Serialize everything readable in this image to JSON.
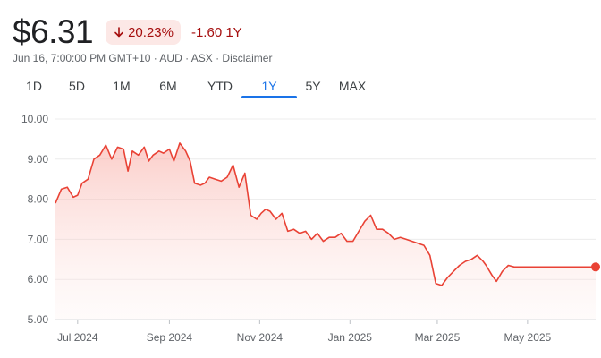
{
  "quote": {
    "price": "$6.31",
    "change_pct": "20.23%",
    "change_abs": "-1.60 1Y",
    "meta": "Jun 16, 7:00:00 PM GMT+10 · AUD · ASX · Disclaimer",
    "down_color": "#a50e0e",
    "down_bg": "#fce8e6"
  },
  "range_tabs": [
    {
      "label": "1D",
      "active": false
    },
    {
      "label": "5D",
      "active": false
    },
    {
      "label": "1M",
      "active": false
    },
    {
      "label": "6M",
      "active": false
    },
    {
      "label": "YTD",
      "active": false
    },
    {
      "label": "1Y",
      "active": true
    },
    {
      "label": "5Y",
      "active": false
    },
    {
      "label": "MAX",
      "active": false
    }
  ],
  "chart_data": {
    "type": "area",
    "ylim": [
      5.0,
      10.0
    ],
    "y_ticks": [
      {
        "value": 10,
        "label": "10.00"
      },
      {
        "value": 9,
        "label": "9.00"
      },
      {
        "value": 8,
        "label": "8.00"
      },
      {
        "value": 7,
        "label": "7.00"
      },
      {
        "value": 6,
        "label": "6.00"
      },
      {
        "value": 5,
        "label": "5.00"
      }
    ],
    "x_range": [
      "2024-06-16",
      "2025-06-16"
    ],
    "x_ticks": [
      {
        "date": "2024-07-01",
        "label": "Jul 2024"
      },
      {
        "date": "2024-09-01",
        "label": "Sep 2024"
      },
      {
        "date": "2024-11-01",
        "label": "Nov 2024"
      },
      {
        "date": "2025-01-01",
        "label": "Jan 2025"
      },
      {
        "date": "2025-03-01",
        "label": "Mar 2025"
      },
      {
        "date": "2025-05-01",
        "label": "May 2025"
      }
    ],
    "grid": true,
    "line_color": "#e94235",
    "series": [
      {
        "x": [
          "2024-06-16",
          "2024-06-20",
          "2024-06-24",
          "2024-06-28",
          "2024-07-01",
          "2024-07-04",
          "2024-07-08",
          "2024-07-12",
          "2024-07-16",
          "2024-07-20",
          "2024-07-24",
          "2024-07-28",
          "2024-08-01",
          "2024-08-04",
          "2024-08-07",
          "2024-08-11",
          "2024-08-15",
          "2024-08-18",
          "2024-08-21",
          "2024-08-25",
          "2024-08-28",
          "2024-09-01",
          "2024-09-04",
          "2024-09-08",
          "2024-09-12",
          "2024-09-15",
          "2024-09-18",
          "2024-09-22",
          "2024-09-25",
          "2024-09-28",
          "2024-10-02",
          "2024-10-06",
          "2024-10-10",
          "2024-10-14",
          "2024-10-18",
          "2024-10-22",
          "2024-10-26",
          "2024-10-30",
          "2024-11-02",
          "2024-11-05",
          "2024-11-08",
          "2024-11-12",
          "2024-11-16",
          "2024-11-20",
          "2024-11-24",
          "2024-11-28",
          "2024-12-02",
          "2024-12-06",
          "2024-12-10",
          "2024-12-14",
          "2024-12-18",
          "2024-12-22",
          "2024-12-26",
          "2024-12-30",
          "2025-01-03",
          "2025-01-07",
          "2025-01-11",
          "2025-01-15",
          "2025-01-19",
          "2025-01-23",
          "2025-01-27",
          "2025-01-31",
          "2025-02-04",
          "2025-02-08",
          "2025-02-12",
          "2025-02-16",
          "2025-02-20",
          "2025-02-24",
          "2025-02-28",
          "2025-03-04",
          "2025-03-08",
          "2025-03-12",
          "2025-03-16",
          "2025-03-20",
          "2025-03-24",
          "2025-03-28",
          "2025-04-01",
          "2025-04-03",
          "2025-04-07",
          "2025-04-10",
          "2025-04-14",
          "2025-04-18",
          "2025-04-22",
          "2025-04-26",
          "2025-04-30",
          "2025-05-04",
          "2025-05-08",
          "2025-05-12",
          "2025-05-16",
          "2025-05-20",
          "2025-05-24",
          "2025-05-28",
          "2025-06-01",
          "2025-06-04",
          "2025-06-08",
          "2025-06-12",
          "2025-06-16"
        ],
        "y": [
          7.9,
          8.25,
          8.3,
          8.05,
          8.1,
          8.4,
          8.5,
          9.0,
          9.1,
          9.35,
          9.0,
          9.3,
          9.25,
          8.7,
          9.2,
          9.1,
          9.3,
          8.95,
          9.1,
          9.2,
          9.15,
          9.25,
          8.95,
          9.4,
          9.2,
          8.95,
          8.4,
          8.35,
          8.4,
          8.55,
          8.5,
          8.45,
          8.55,
          8.85,
          8.3,
          8.65,
          7.6,
          7.5,
          7.65,
          7.75,
          7.7,
          7.5,
          7.65,
          7.2,
          7.25,
          7.15,
          7.2,
          7.0,
          7.15,
          6.95,
          7.05,
          7.05,
          7.15,
          6.95,
          6.95,
          7.2,
          7.45,
          7.6,
          7.25,
          7.25,
          7.15,
          7.0,
          7.05,
          7.0,
          6.95,
          6.9,
          6.85,
          6.6,
          5.9,
          5.85,
          6.05,
          6.2,
          6.35,
          6.45,
          6.5,
          6.6,
          6.45,
          6.35,
          6.1,
          5.95,
          6.2,
          6.35,
          6.31,
          6.31,
          6.31,
          6.31,
          6.31,
          6.31,
          6.31,
          6.31,
          6.31,
          6.31,
          6.31,
          6.31,
          6.31,
          6.31,
          6.31
        ]
      }
    ]
  }
}
